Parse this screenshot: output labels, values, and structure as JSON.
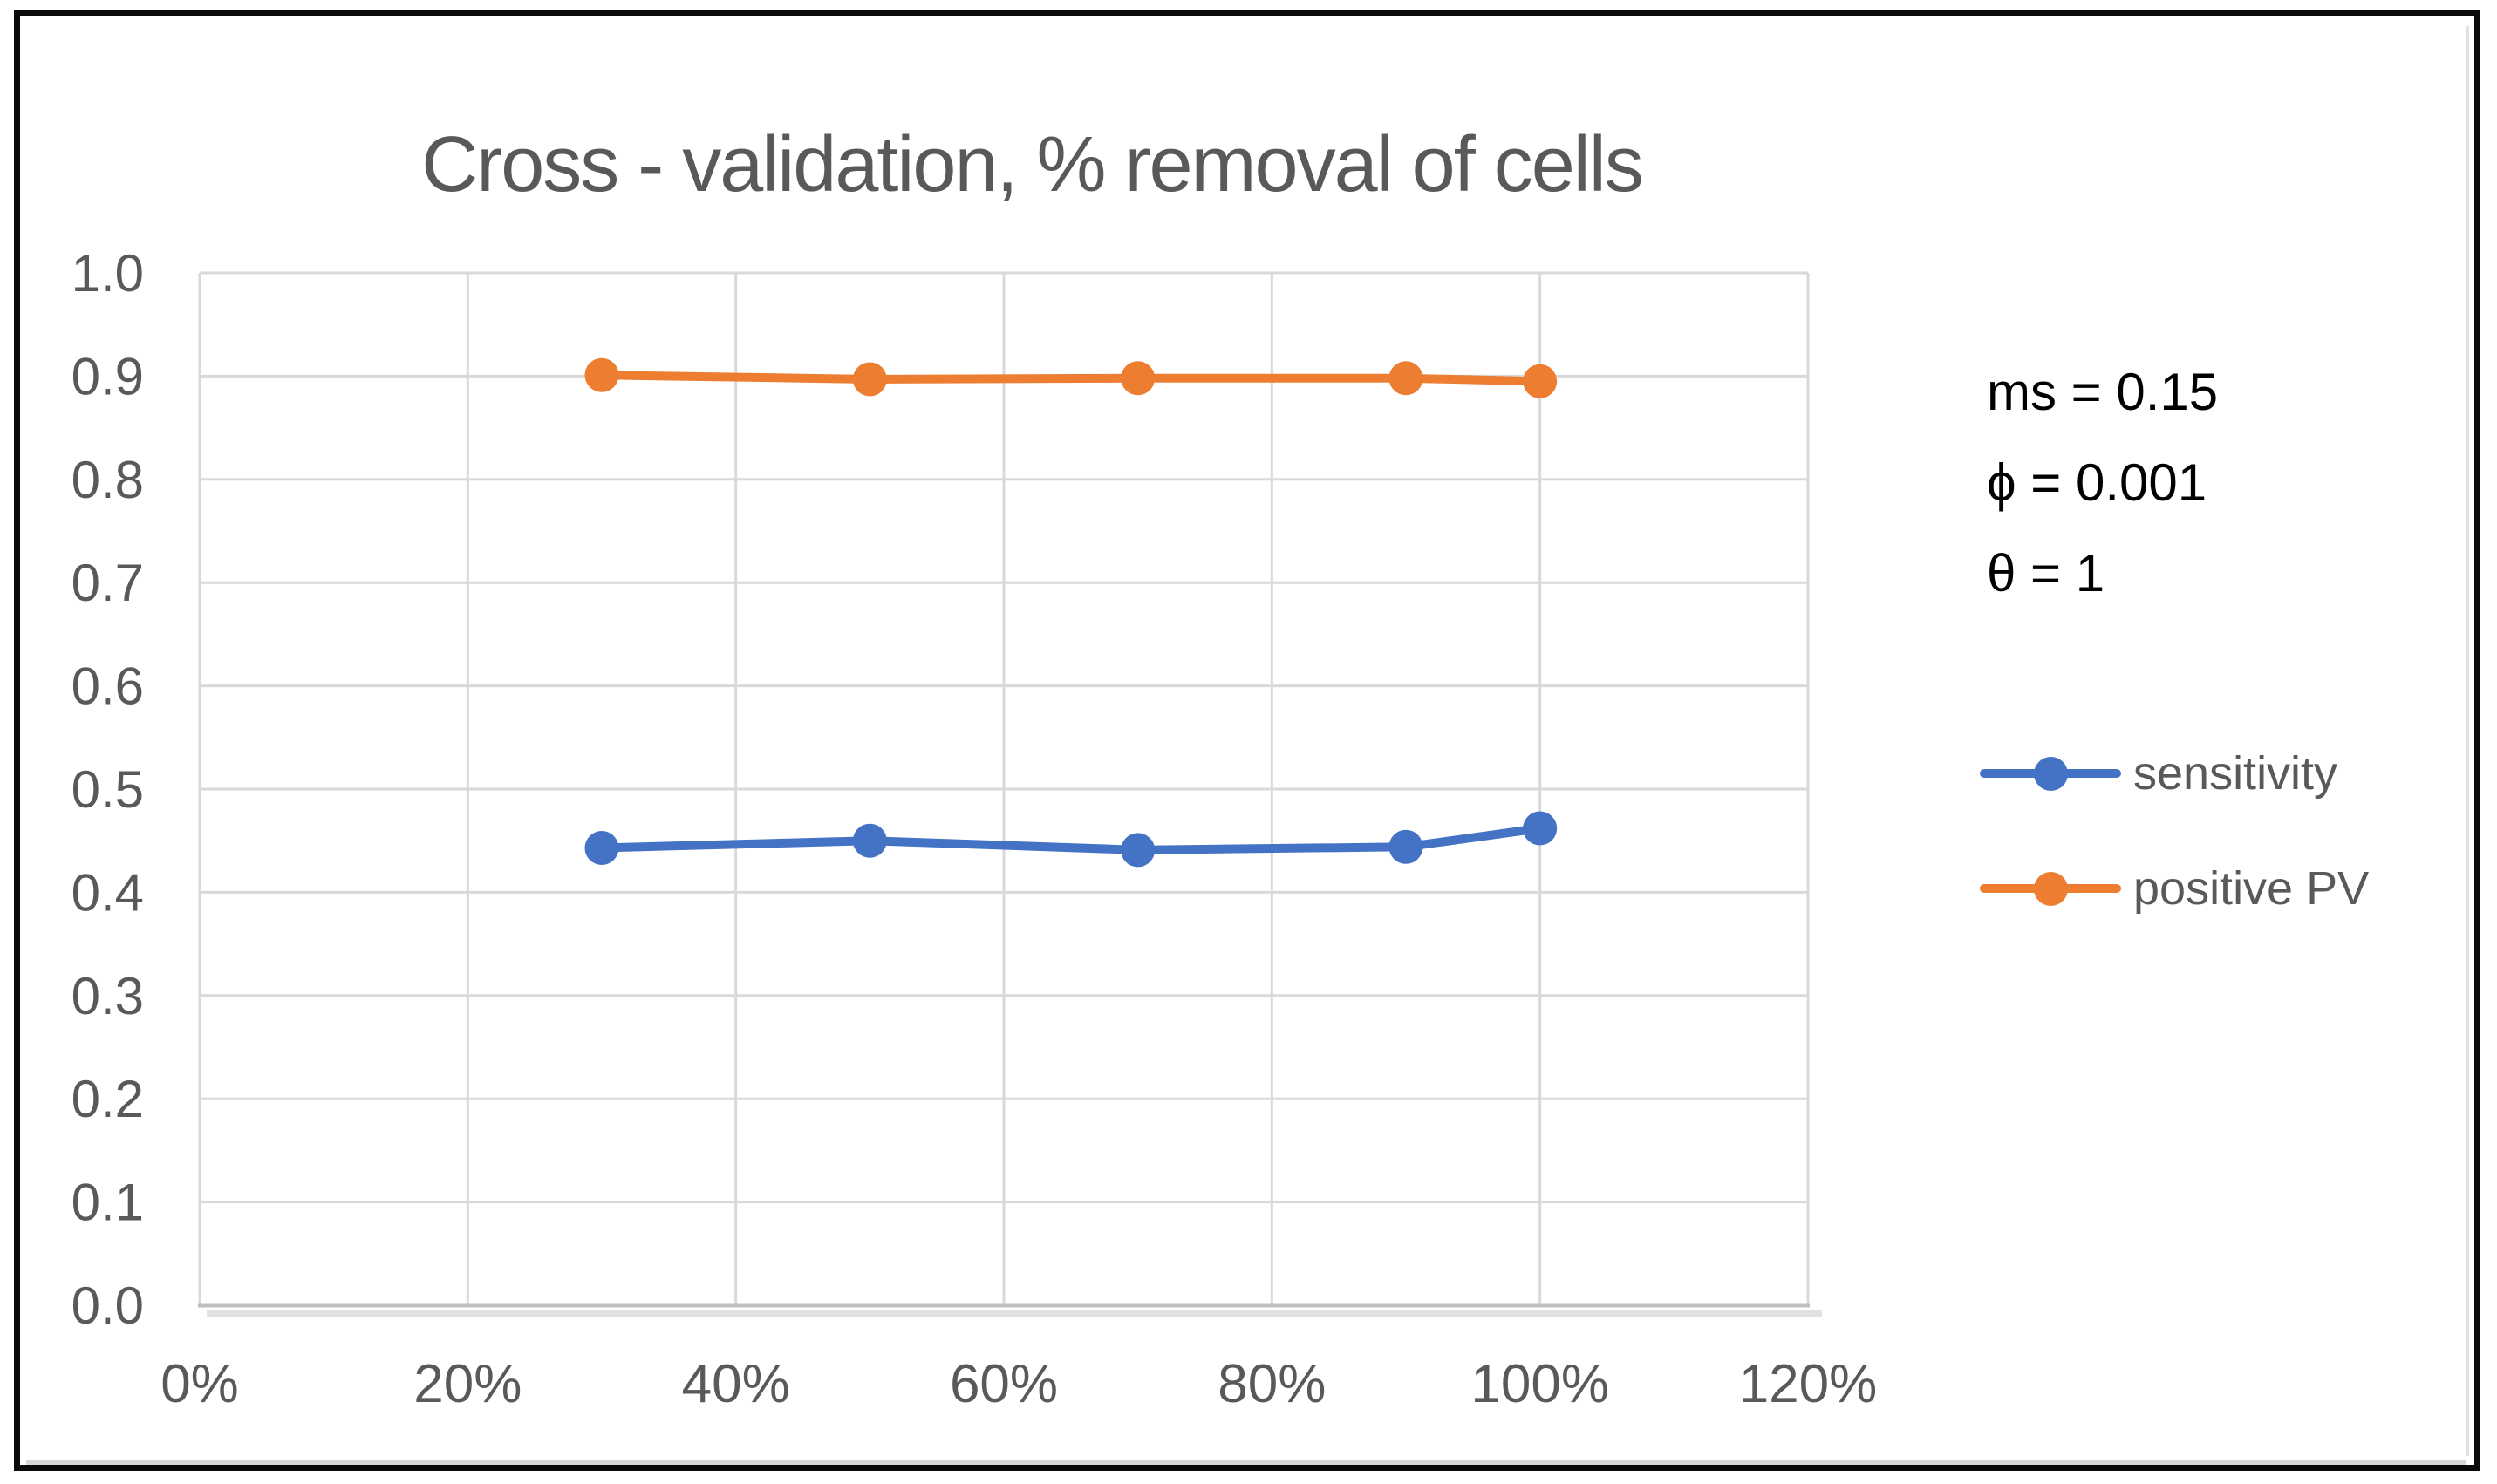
{
  "figure": {
    "title": "Cross - validation, % removal of cells",
    "title_color": "#595959",
    "frame_color": "#0a0a0a",
    "background_color": "#ffffff"
  },
  "annotations": {
    "lines": [
      "ms = 0.15",
      "ϕ = 0.001",
      "θ = 1"
    ],
    "text_color": "#000000"
  },
  "chart_data": {
    "type": "line",
    "x": [
      0.3,
      0.5,
      0.7,
      0.9,
      1.0
    ],
    "series": [
      {
        "name": "sensitivity",
        "color": "#4472C4",
        "values": [
          0.443,
          0.45,
          0.441,
          0.444,
          0.462
        ]
      },
      {
        "name": "positive PV",
        "color": "#ED7D31",
        "values": [
          0.901,
          0.897,
          0.898,
          0.898,
          0.895
        ]
      }
    ],
    "title": "Cross - validation, % removal of cells",
    "xlabel": "",
    "ylabel": "",
    "xlim": [
      0,
      1.2
    ],
    "ylim": [
      0,
      1.0
    ],
    "x_ticks": {
      "values": [
        0,
        0.2,
        0.4,
        0.6,
        0.8,
        1.0,
        1.2
      ],
      "labels": [
        "0%",
        "20%",
        "40%",
        "60%",
        "80%",
        "100%",
        "120%"
      ]
    },
    "y_ticks": {
      "values": [
        0,
        0.1,
        0.2,
        0.3,
        0.4,
        0.5,
        0.6,
        0.7,
        0.8,
        0.9,
        1.0
      ],
      "labels": [
        "0.0",
        "0.1",
        "0.2",
        "0.3",
        "0.4",
        "0.5",
        "0.6",
        "0.7",
        "0.8",
        "0.9",
        "1.0"
      ]
    },
    "grid": true,
    "gridline_color": "#D9D9D9",
    "axis_line_color": "#BFBFBF",
    "tick_label_color": "#595959",
    "marker_style": "circle",
    "legend_position": "right",
    "legend_text_color": "#595959"
  }
}
